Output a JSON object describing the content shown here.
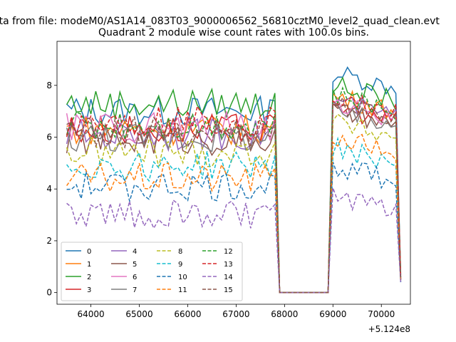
{
  "chart_data": {
    "type": "line",
    "suptitle": "ata from file: modeM0/AS1A14_083T03_9000006562_56810cztM0_level2_quad_clean.evt",
    "title": "Quadrant 2 module wise count rates with 100.0s bins.",
    "xlabel": "",
    "ylabel": "",
    "x_offset_label": "+5.124e8",
    "xlim": [
      63300,
      70600
    ],
    "ylim": [
      -0.45,
      9.7
    ],
    "x_ticks": [
      64000,
      65000,
      66000,
      67000,
      68000,
      69000,
      70000
    ],
    "x_tick_labels": [
      "64000",
      "65000",
      "66000",
      "67000",
      "68000",
      "69000",
      "70000"
    ],
    "y_ticks": [
      0,
      2,
      4,
      6,
      8
    ],
    "y_tick_labels": [
      "0",
      "2",
      "4",
      "6",
      "8"
    ],
    "grid": false,
    "legend_position": "lower-left",
    "gap": {
      "x": [
        67800,
        67900,
        68000,
        68100,
        68200,
        68300,
        68400,
        68500,
        68600,
        68700,
        68800,
        68900
      ],
      "values": [
        6.0,
        0,
        0,
        0,
        0,
        0,
        0,
        0,
        0,
        0,
        0,
        0
      ]
    },
    "x_start": 63500,
    "x_step": 100,
    "series": [
      {
        "name": "0",
        "color": "#1f77b4",
        "dash": "solid",
        "base": 7.0,
        "high": 8.5,
        "last": 0.6
      },
      {
        "name": "1",
        "color": "#ff7f0e",
        "dash": "solid",
        "base": 6.3,
        "high": 7.6,
        "last": 0.5
      },
      {
        "name": "2",
        "color": "#2ca02c",
        "dash": "solid",
        "base": 7.3,
        "high": 8.0,
        "last": 0.7
      },
      {
        "name": "3",
        "color": "#d62728",
        "dash": "solid",
        "base": 6.3,
        "high": 7.2,
        "last": 0.5
      },
      {
        "name": "4",
        "color": "#9467bd",
        "dash": "solid",
        "base": 6.1,
        "high": 7.4,
        "last": 0.5
      },
      {
        "name": "5",
        "color": "#8c564b",
        "dash": "solid",
        "base": 5.9,
        "high": 7.0,
        "last": 0.5
      },
      {
        "name": "6",
        "color": "#e377c2",
        "dash": "solid",
        "base": 6.4,
        "high": 7.3,
        "last": 0.5
      },
      {
        "name": "7",
        "color": "#7f7f7f",
        "dash": "solid",
        "base": 6.0,
        "high": 7.0,
        "last": 0.5
      },
      {
        "name": "8",
        "color": "#bcbd22",
        "dash": "dashed",
        "base": 5.4,
        "high": 6.6,
        "last": 0.5
      },
      {
        "name": "9",
        "color": "#17becf",
        "dash": "dashed",
        "base": 4.9,
        "high": 5.6,
        "last": 0.4
      },
      {
        "name": "10",
        "color": "#1f77b4",
        "dash": "dashed",
        "base": 4.1,
        "high": 4.9,
        "last": 0.4
      },
      {
        "name": "11",
        "color": "#ff7f0e",
        "dash": "dashed",
        "base": 4.4,
        "high": 6.0,
        "last": 0.4
      },
      {
        "name": "12",
        "color": "#2ca02c",
        "dash": "dashed",
        "base": 6.5,
        "high": 7.6,
        "last": 0.6
      },
      {
        "name": "13",
        "color": "#d62728",
        "dash": "dashed",
        "base": 6.6,
        "high": 7.5,
        "last": 0.6
      },
      {
        "name": "14",
        "color": "#9467bd",
        "dash": "dashed",
        "base": 3.0,
        "high": 3.7,
        "last": 0.4
      },
      {
        "name": "15",
        "color": "#8c564b",
        "dash": "dashed",
        "base": 6.2,
        "high": 7.3,
        "last": 0.5
      }
    ]
  }
}
